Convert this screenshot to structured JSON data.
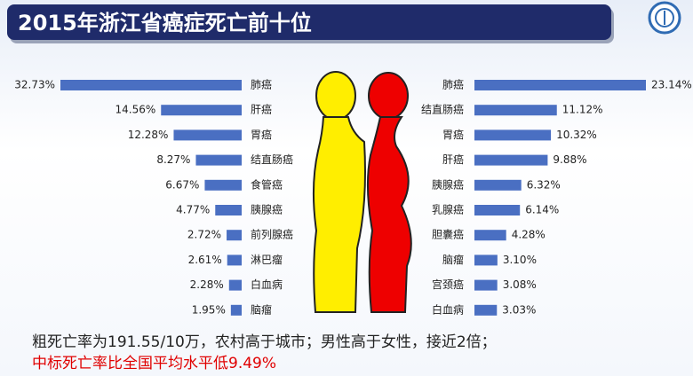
{
  "title": "2015年浙江省癌症死亡前十位",
  "chart_data": [
    {
      "type": "bar",
      "color": "#4a6fc2",
      "categories": [
        "肺癌",
        "肝癌",
        "胃癌",
        "结直肠癌",
        "食管癌",
        "胰腺癌",
        "前列腺癌",
        "淋巴瘤",
        "白血病",
        "脑瘤"
      ],
      "values": [
        32.73,
        14.56,
        12.28,
        8.27,
        6.67,
        4.77,
        2.72,
        2.61,
        2.28,
        1.95
      ],
      "value_labels": [
        "32.73%",
        "14.56%",
        "12.28%",
        "8.27%",
        "6.67%",
        "4.77%",
        "2.72%",
        "2.61%",
        "2.28%",
        "1.95%"
      ]
    },
    {
      "type": "bar",
      "color": "#4a6fc2",
      "categories": [
        "肺癌",
        "结直肠癌",
        "胃癌",
        "肝癌",
        "胰腺癌",
        "乳腺癌",
        "胆囊癌",
        "脑瘤",
        "宫颈癌",
        "白血病"
      ],
      "values": [
        23.14,
        11.12,
        10.32,
        9.88,
        6.32,
        6.14,
        4.28,
        3.1,
        3.08,
        3.03
      ],
      "value_labels": [
        "23.14%",
        "11.12%",
        "10.32%",
        "9.88%",
        "6.32%",
        "6.14%",
        "4.28%",
        "3.10%",
        "3.08%",
        "3.03%"
      ]
    }
  ],
  "notes": [
    "粗死亡率为191.55/10万，农村高于城市；男性高于女性，接近2倍；",
    "中标死亡率比全国平均水平低9.49%"
  ]
}
